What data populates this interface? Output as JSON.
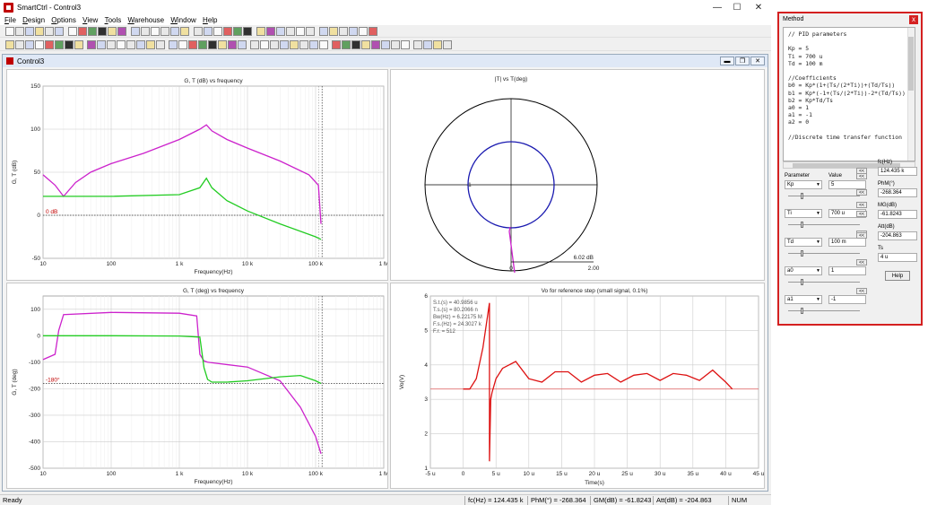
{
  "window": {
    "title": "SmartCtrl - Control3",
    "minimize": "—",
    "maximize": "☐",
    "close": "✕"
  },
  "menu": [
    "File",
    "Design",
    "Options",
    "View",
    "Tools",
    "Warehouse",
    "Window",
    "Help"
  ],
  "child_window": {
    "title": "Control3"
  },
  "status_bar": {
    "state": "Ready",
    "fc": "fc(Hz) = 124.435 k",
    "phm": "PhM(°) = -268.364",
    "gm": "GM(dB) = -61.8243",
    "att": "Att(dB) = -204.863",
    "num": "NUM"
  },
  "colors": {
    "magenta": "#cc22cc",
    "green": "#22cc22",
    "blue": "#1a1ab0",
    "red": "#dd1111",
    "method_border": "#d42020"
  },
  "charts": {
    "mag": {
      "title": "G, T (dB) vs frequency",
      "xlabel": "Frequency(Hz)",
      "ylabel": "G, T (dB)",
      "yticks": [
        "150",
        "100",
        "50",
        "0",
        "-50"
      ],
      "xticks": [
        "10",
        "100",
        "1 k",
        "10 k",
        "100 k",
        "1 M"
      ],
      "ref_label": "0 dB"
    },
    "polar": {
      "title": "|T| vs T(deg)",
      "left_label": "-1",
      "gain_label": "6.02 dB",
      "axis_start": "0",
      "axis_end": "2.00"
    },
    "phase": {
      "title": "G, T (deg) vs frequency",
      "xlabel": "Frequency(Hz)",
      "ylabel": "G, T (deg)",
      "yticks": [
        "100",
        "0",
        "-100",
        "-200",
        "-300",
        "-400",
        "-500"
      ],
      "xticks": [
        "10",
        "100",
        "1 k",
        "10 k",
        "100 k",
        "1 M"
      ],
      "ref_label": "-180°"
    },
    "step": {
      "title": "Vo for reference step (small signal, 0.1%)",
      "xlabel": "Time(s)",
      "ylabel": "Vo(V)",
      "yticks": [
        "6",
        "5",
        "4",
        "3",
        "2",
        "1"
      ],
      "xticks": [
        "-5 u",
        "0",
        "5 u",
        "10 u",
        "15 u",
        "20 u",
        "25 u",
        "30 u",
        "35 u",
        "40 u",
        "45 u"
      ],
      "info": [
        "S.t.(s) = 40.9856 u",
        "T.s.(s) = 80.2066 n",
        "Bw(Hz) = 6.22175 M",
        "F.s.(Hz) = 24.3027 k",
        "F.r. = 512"
      ]
    }
  },
  "chart_data": [
    {
      "type": "line",
      "title": "G, T (dB) vs frequency",
      "xlabel": "Frequency(Hz)",
      "ylabel": "G, T (dB)",
      "xscale": "log",
      "xlim": [
        10,
        1000000
      ],
      "ylim": [
        -50,
        150
      ],
      "grid": true,
      "series": [
        {
          "x": [
            10,
            15,
            20,
            30,
            50,
            100,
            300,
            1000,
            2000,
            2500,
            3000,
            5000,
            10000,
            30000,
            80000,
            110000,
            120000
          ],
          "y": [
            47,
            35,
            22,
            38,
            50,
            60,
            72,
            88,
            100,
            105,
            98,
            88,
            78,
            63,
            47,
            35,
            -10
          ]
        },
        {
          "x": [
            10,
            100,
            1000,
            2000,
            2500,
            3000,
            5000,
            10000,
            30000,
            100000,
            120000
          ],
          "y": [
            22,
            22,
            24,
            32,
            43,
            32,
            17,
            5,
            -10,
            -25,
            -28
          ]
        }
      ],
      "hline": 0
    },
    {
      "type": "line",
      "title": "G, T (deg) vs frequency",
      "xlabel": "Frequency(Hz)",
      "ylabel": "G, T (deg)",
      "xscale": "log",
      "xlim": [
        10,
        1000000
      ],
      "ylim": [
        -500,
        150
      ],
      "grid": true,
      "series": [
        {
          "x": [
            10,
            15,
            17,
            20,
            100,
            1000,
            1800,
            2000,
            2300,
            2600,
            3000,
            10000,
            30000,
            60000,
            100000,
            120000
          ],
          "y": [
            -90,
            -70,
            20,
            80,
            88,
            85,
            75,
            -70,
            -95,
            -100,
            -102,
            -118,
            -170,
            -270,
            -380,
            -445
          ]
        },
        {
          "x": [
            10,
            100,
            1000,
            2000,
            2300,
            2600,
            3000,
            5000,
            10000,
            30000,
            60000,
            100000,
            120000
          ],
          "y": [
            0,
            0,
            -1,
            -5,
            -120,
            -165,
            -175,
            -175,
            -170,
            -155,
            -150,
            -170,
            -180
          ]
        }
      ],
      "hline": -180
    },
    {
      "type": "line",
      "title": "Vo for reference step (small signal, 0.1%)",
      "xlabel": "Time(s)",
      "ylabel": "Vo(V)",
      "xlim": [
        -5,
        45
      ],
      "ylim": [
        1,
        6
      ],
      "grid": true,
      "series": [
        {
          "x": [
            0,
            1,
            2,
            3,
            4,
            4,
            4.2,
            4.4,
            5,
            6,
            8,
            10,
            12,
            14,
            16,
            18,
            20,
            22,
            24,
            26,
            28,
            30,
            32,
            34,
            36,
            38,
            40,
            41
          ],
          "y": [
            3.3,
            3.3,
            3.6,
            4.5,
            5.8,
            1.2,
            3.0,
            3.2,
            3.6,
            3.9,
            4.1,
            3.6,
            3.5,
            3.8,
            3.8,
            3.5,
            3.7,
            3.75,
            3.5,
            3.7,
            3.75,
            3.55,
            3.75,
            3.7,
            3.55,
            3.85,
            3.5,
            3.3
          ]
        }
      ],
      "hline": 3.3
    },
    {
      "type": "scatter",
      "title": "|T| vs T(deg)",
      "xlim": [
        0,
        2
      ],
      "series": [
        {
          "name": "circle",
          "r": 0.5
        }
      ]
    }
  ],
  "method": {
    "title": "Method",
    "close": "x",
    "code_lines": [
      "// PID parameters",
      "",
      "Kp = 5",
      "Ti = 700 u",
      "Td = 100 m",
      "",
      "//Coefficients",
      "b0 = Kp*(1+(Ts/(2*Ti))+(Td/Ts))",
      "b1 = Kp*(-1+(Ts/(2*Ti))-2*(Td/Ts))",
      "b2 = Kp*Td/Ts",
      "a0 = 1",
      "a1 = -1",
      "a2 = 0",
      "",
      "//Discrete time transfer function"
    ],
    "param_header": "Parameter",
    "value_header": "Value",
    "params": [
      {
        "name": "Kp",
        "value": "5"
      },
      {
        "name": "Ti",
        "value": "700 u"
      },
      {
        "name": "Td",
        "value": "100 m"
      },
      {
        "name": "a0",
        "value": "1"
      },
      {
        "name": "a1",
        "value": "-1"
      }
    ],
    "results": [
      {
        "label": "fc(Hz)",
        "value": "124.435 k"
      },
      {
        "label": "PhM(°)",
        "value": "-268.364"
      },
      {
        "label": "MG(dB)",
        "value": "-61.8243"
      },
      {
        "label": "Att(dB)",
        "value": "-204.863"
      },
      {
        "label": "Ts",
        "value": "4 u"
      }
    ],
    "help": "Help",
    "small_btn": "<<"
  }
}
